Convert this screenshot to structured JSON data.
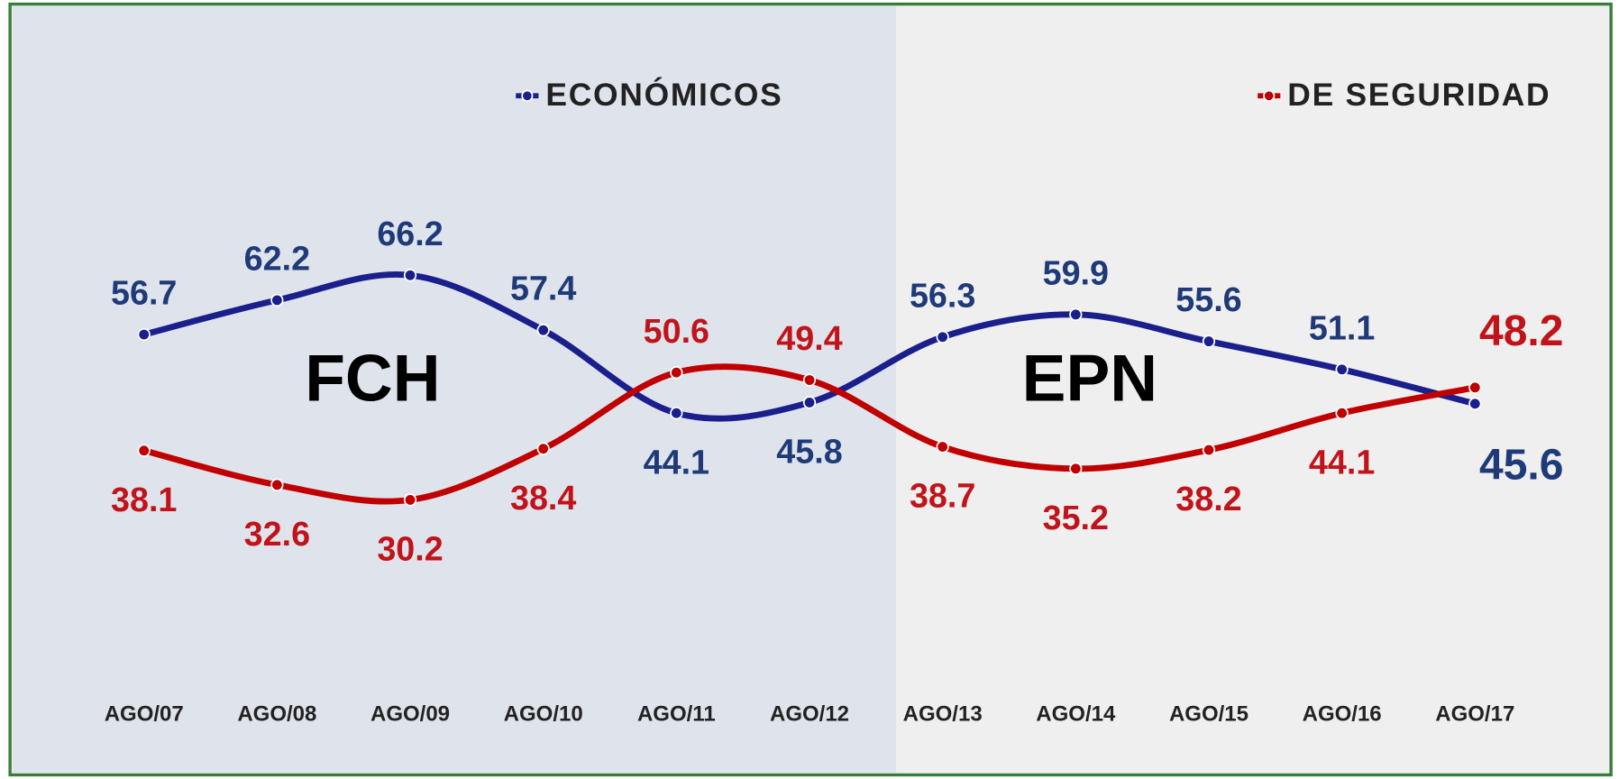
{
  "chart_data": {
    "type": "line",
    "categories": [
      "AGO/07",
      "AGO/08",
      "AGO/09",
      "AGO/10",
      "AGO/11",
      "AGO/12",
      "AGO/13",
      "AGO/14",
      "AGO/15",
      "AGO/16",
      "AGO/17"
    ],
    "series": [
      {
        "name": "ECONÓMICOS",
        "color": "#1a1f8c",
        "label_color": "#1f3a78",
        "values": [
          56.7,
          62.2,
          66.2,
          57.4,
          44.1,
          45.8,
          56.3,
          59.9,
          55.6,
          51.1,
          45.6
        ]
      },
      {
        "name": "DE SEGURIDAD",
        "color": "#c00000",
        "label_color": "#c0141a",
        "values": [
          38.1,
          32.6,
          30.2,
          38.4,
          50.6,
          49.4,
          38.7,
          35.2,
          38.2,
          44.1,
          48.2
        ]
      }
    ],
    "annotations": [
      "FCH",
      "EPN"
    ],
    "legend": "top"
  }
}
